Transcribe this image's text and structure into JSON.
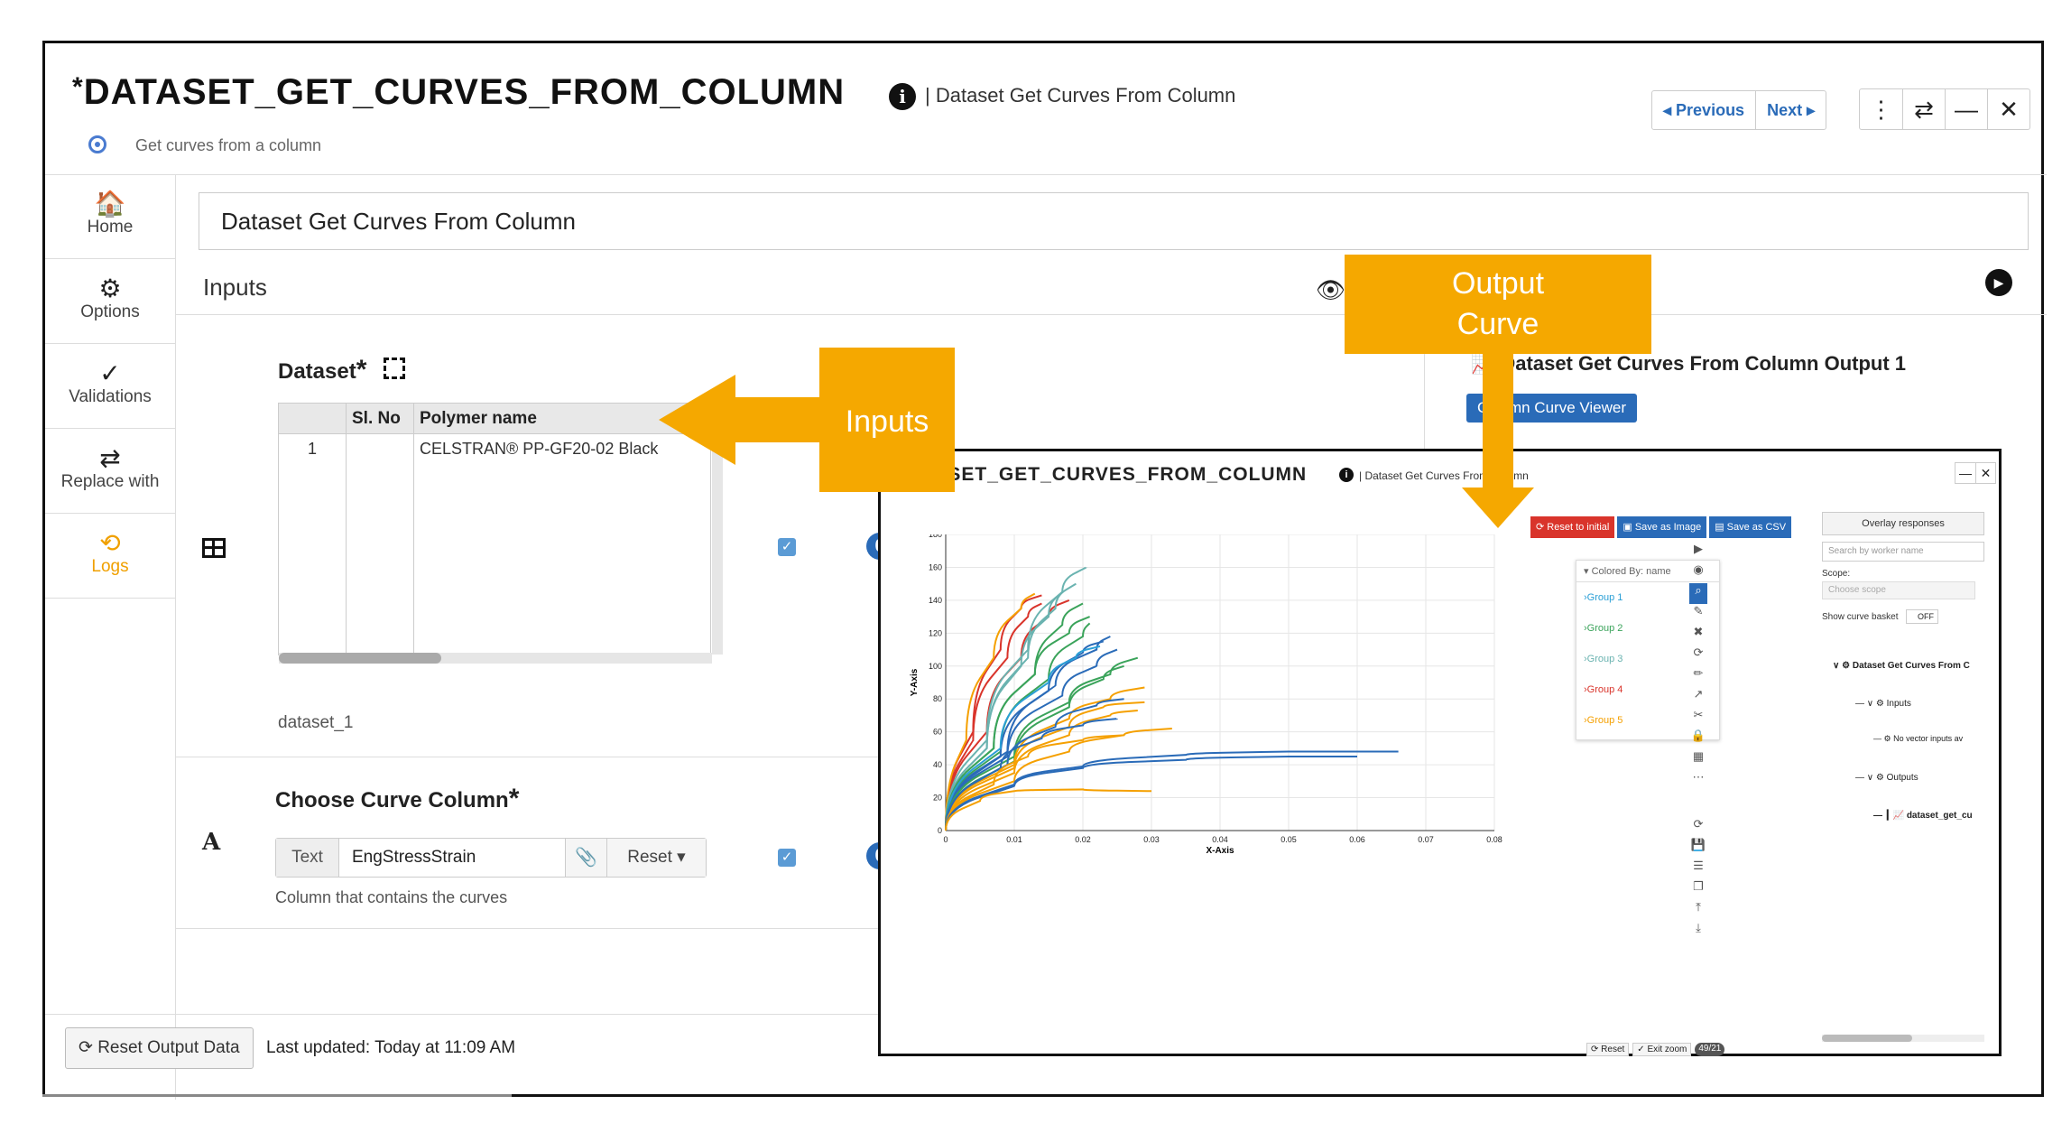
{
  "header": {
    "title_star": "*",
    "title": "DATASET_GET_CURVES_FROM_COLUMN",
    "info_glyph": "i",
    "subtitle": "| Dataset Get Curves From Column",
    "description": "Get curves from a column",
    "prev_label": "◂ Previous",
    "next_label": "Next ▸",
    "tool_icons": [
      "kebab-icon",
      "swap-icon",
      "minimize-icon",
      "close-icon"
    ],
    "tool_glyphs": [
      "⋮",
      "⇄",
      "—",
      "✕"
    ]
  },
  "sidebar": {
    "items": [
      {
        "label": "Home",
        "icon": "home-icon",
        "glyph": "🏠"
      },
      {
        "label": "Options",
        "icon": "gear-icon",
        "glyph": "⚙"
      },
      {
        "label": "Validations",
        "icon": "check-icon",
        "glyph": "✓"
      },
      {
        "label": "Replace with",
        "icon": "swap-icon",
        "glyph": "⇄"
      },
      {
        "label": "Logs",
        "icon": "history-icon",
        "glyph": "⟲"
      }
    ]
  },
  "main": {
    "name_value": "Dataset Get Curves From Column",
    "inputs_label": "Inputs",
    "dataset": {
      "label": "Dataset",
      "required": "*",
      "columns": [
        "",
        "Sl. No",
        "Polymer name"
      ],
      "rows": [
        [
          "1",
          "",
          "CELSTRAN® PP-GF20-02 Black"
        ]
      ],
      "caption": "dataset_1",
      "count": "0"
    },
    "curve_column": {
      "label": "Choose Curve Column",
      "required": "*",
      "type_prefix": "Text",
      "value": "EngStressStrain",
      "reset_label": "Reset ▾",
      "caption": "Column that contains the curves",
      "count": "0"
    },
    "reset_output_label": "⟳ Reset Output Data",
    "last_updated": "Last updated: Today at 11:09 AM"
  },
  "output": {
    "title": "Dataset Get Curves From Column Output 1",
    "viewer_button": "Column Curve Viewer"
  },
  "viewer": {
    "title": "*DATASET_GET_CURVES_FROM_COLUMN",
    "subtitle": "| Dataset Get Curves From Column",
    "buttons": [
      {
        "label": "⟳ Reset to initial",
        "color": "#d9342b"
      },
      {
        "label": "▣ Save as Image",
        "color": "#2a6bb8"
      },
      {
        "label": "▤ Save as CSV",
        "color": "#2a6bb8"
      }
    ],
    "legend_header": "▾   Colored By: name",
    "legend": [
      {
        "label": "›Group 1",
        "color": "#2a9fd6"
      },
      {
        "label": "›Group 2",
        "color": "#3aa35a"
      },
      {
        "label": "›Group 3",
        "color": "#6ab3b0"
      },
      {
        "label": "›Group 4",
        "color": "#d9342b"
      },
      {
        "label": "›Group 5",
        "color": "#f5a000"
      }
    ],
    "footer": [
      "⟳ Reset",
      "✓ Exit zoom",
      "49/21"
    ],
    "right_panel": {
      "overlay_button": "Overlay responses",
      "search_placeholder": "Search by worker name",
      "scope_label": "Scope:",
      "scope_placeholder": "Choose scope",
      "basket_label": "Show curve basket",
      "basket_toggle": "OFF",
      "tree": [
        "Dataset Get Curves From C",
        "Inputs",
        "No vector inputs av",
        "Outputs",
        "dataset_get_cu"
      ]
    }
  },
  "chart_data": {
    "type": "line",
    "xlabel": "X-Axis",
    "ylabel": "Y-Axis",
    "xlim": [
      0,
      0.08
    ],
    "ylim": [
      0,
      180
    ],
    "xticks": [
      "0",
      "0.01",
      "0.02",
      "0.03",
      "0.04",
      "0.05",
      "0.06",
      "0.07",
      "0.08"
    ],
    "yticks": [
      "0",
      "20",
      "40",
      "60",
      "80",
      "100",
      "120",
      "140",
      "160",
      "180"
    ],
    "series": [
      {
        "color": "#d9342b",
        "x": [
          0,
          0.004,
          0.008,
          0.011,
          0.014
        ],
        "y": [
          0,
          60,
          110,
          135,
          143
        ]
      },
      {
        "color": "#d9342b",
        "x": [
          0,
          0.004,
          0.009,
          0.012,
          0.014
        ],
        "y": [
          0,
          55,
          105,
          130,
          138
        ]
      },
      {
        "color": "#d9342b",
        "x": [
          0,
          0.006,
          0.011,
          0.015,
          0.018
        ],
        "y": [
          0,
          60,
          105,
          130,
          140
        ]
      },
      {
        "color": "#f5a000",
        "x": [
          0,
          0.003,
          0.007,
          0.011,
          0.013
        ],
        "y": [
          0,
          55,
          105,
          135,
          144
        ]
      },
      {
        "color": "#6ab3b0",
        "x": [
          0,
          0.006,
          0.012,
          0.017,
          0.0205
        ],
        "y": [
          0,
          55,
          110,
          145,
          160
        ]
      },
      {
        "color": "#6ab3b0",
        "x": [
          0,
          0.006,
          0.012,
          0.016,
          0.019
        ],
        "y": [
          0,
          50,
          105,
          135,
          150
        ]
      },
      {
        "color": "#6ab3b0",
        "x": [
          0,
          0.006,
          0.011,
          0.015,
          0.017
        ],
        "y": [
          0,
          50,
          100,
          130,
          145
        ]
      },
      {
        "color": "#3aa35a",
        "x": [
          0,
          0.007,
          0.013,
          0.018,
          0.021
        ],
        "y": [
          0,
          50,
          95,
          120,
          130
        ]
      },
      {
        "color": "#3aa35a",
        "x": [
          0,
          0.007,
          0.013,
          0.017,
          0.02
        ],
        "y": [
          0,
          50,
          95,
          125,
          138
        ]
      },
      {
        "color": "#3aa35a",
        "x": [
          0,
          0.008,
          0.015,
          0.02,
          0.021
        ],
        "y": [
          0,
          48,
          92,
          118,
          126
        ]
      },
      {
        "color": "#2a6bb8",
        "x": [
          0,
          0.008,
          0.015,
          0.02,
          0.023
        ],
        "y": [
          0,
          45,
          85,
          108,
          115
        ]
      },
      {
        "color": "#2a6bb8",
        "x": [
          0,
          0.009,
          0.016,
          0.022,
          0.024
        ],
        "y": [
          0,
          48,
          88,
          110,
          118
        ]
      },
      {
        "color": "#2a9fd6",
        "x": [
          0,
          0.008,
          0.015,
          0.019,
          0.0225
        ],
        "y": [
          0,
          50,
          90,
          105,
          112
        ]
      },
      {
        "color": "#2a6bb8",
        "x": [
          0,
          0.009,
          0.017,
          0.022,
          0.025
        ],
        "y": [
          0,
          45,
          82,
          100,
          110
        ]
      },
      {
        "color": "#3aa35a",
        "x": [
          0,
          0.01,
          0.018,
          0.024,
          0.028
        ],
        "y": [
          0,
          45,
          78,
          95,
          105
        ]
      },
      {
        "color": "#3aa35a",
        "x": [
          0,
          0.01,
          0.018,
          0.023,
          0.026
        ],
        "y": [
          0,
          42,
          75,
          92,
          100
        ]
      },
      {
        "color": "#f5a000",
        "x": [
          0,
          0.01,
          0.018,
          0.024,
          0.029
        ],
        "y": [
          0,
          40,
          68,
          80,
          87
        ]
      },
      {
        "color": "#f5a000",
        "x": [
          0,
          0.01,
          0.018,
          0.023,
          0.029
        ],
        "y": [
          0,
          38,
          63,
          75,
          78
        ]
      },
      {
        "color": "#f5a000",
        "x": [
          0,
          0.01,
          0.018,
          0.024,
          0.028
        ],
        "y": [
          0,
          35,
          58,
          70,
          73
        ]
      },
      {
        "color": "#2a6bb8",
        "x": [
          0,
          0.009,
          0.016,
          0.022,
          0.026
        ],
        "y": [
          0,
          40,
          63,
          76,
          80
        ]
      },
      {
        "color": "#2a6bb8",
        "x": [
          0,
          0.008,
          0.014,
          0.02,
          0.025
        ],
        "y": [
          0,
          38,
          56,
          64,
          68
        ]
      },
      {
        "color": "#f5a000",
        "x": [
          0,
          0.01,
          0.018,
          0.026,
          0.033
        ],
        "y": [
          0,
          30,
          48,
          58,
          62
        ]
      },
      {
        "color": "#f5a000",
        "x": [
          0,
          0.007,
          0.012,
          0.02,
          0.026
        ],
        "y": [
          0,
          28,
          45,
          55,
          58
        ]
      },
      {
        "color": "#2a6bb8",
        "x": [
          0,
          0.01,
          0.02,
          0.035,
          0.05,
          0.066
        ],
        "y": [
          0,
          28,
          39,
          46,
          48,
          48
        ]
      },
      {
        "color": "#2a6bb8",
        "x": [
          0,
          0.01,
          0.02,
          0.035,
          0.05,
          0.06
        ],
        "y": [
          0,
          27,
          38,
          43,
          45,
          45
        ]
      },
      {
        "color": "#f5a000",
        "x": [
          0,
          0.005,
          0.01,
          0.02,
          0.03
        ],
        "y": [
          0,
          18,
          24,
          25,
          24
        ]
      }
    ]
  }
}
